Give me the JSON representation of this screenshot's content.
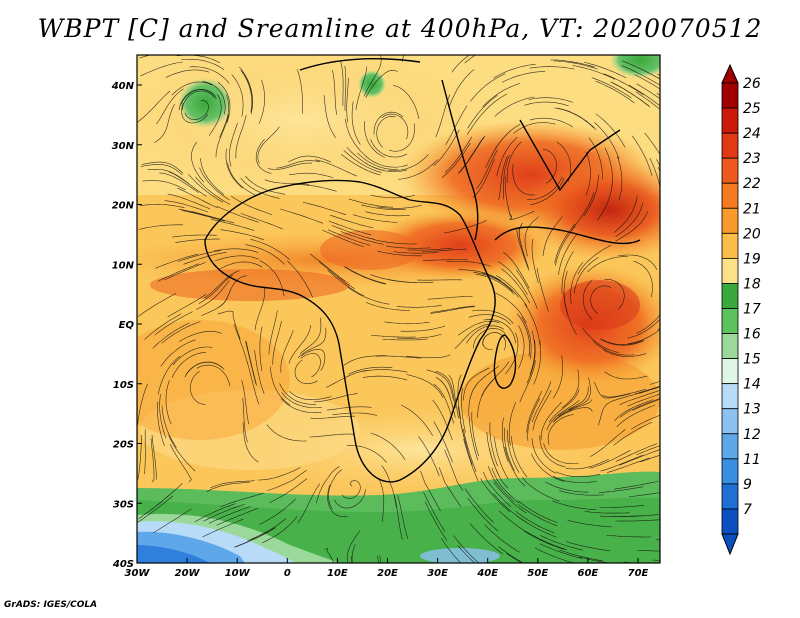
{
  "title": "WBPT [C] and Sreamline at 400hPa, VT: 2020070512",
  "footer": "GrADS: IGES/COLA",
  "x_ticks": [
    "30W",
    "20W",
    "10W",
    "0",
    "10E",
    "20E",
    "30E",
    "40E",
    "50E",
    "60E",
    "70E"
  ],
  "y_ticks": [
    "40N",
    "30N",
    "20N",
    "10N",
    "EQ",
    "10S",
    "20S",
    "30S",
    "40S"
  ],
  "colorbar": {
    "labels": [
      "26",
      "25",
      "24",
      "23",
      "22",
      "21",
      "20",
      "19",
      "18",
      "17",
      "16",
      "15",
      "14",
      "13",
      "12",
      "11",
      "9",
      "7"
    ],
    "colors": [
      "#a00000",
      "#cc1a0a",
      "#e03a14",
      "#ee5a1e",
      "#f57a22",
      "#f99b2c",
      "#fbbd4a",
      "#fde088",
      "#3aa83a",
      "#5cc25c",
      "#9ad99a",
      "#dff6e6",
      "#b8dcf8",
      "#8cc2f2",
      "#5ea8ea",
      "#3a8ee2",
      "#1f6fd4",
      "#0b4fc0"
    ]
  },
  "chart_data": {
    "type": "heatmap",
    "variable": "WBPT [C]",
    "level": "400hPa",
    "valid_time": "2020070512",
    "lon_range": [
      -30,
      75
    ],
    "lat_range": [
      -40,
      45
    ],
    "colorbar_values": [
      7,
      9,
      11,
      12,
      13,
      14,
      15,
      16,
      17,
      18,
      19,
      20,
      21,
      22,
      23,
      24,
      25,
      26
    ]
  }
}
